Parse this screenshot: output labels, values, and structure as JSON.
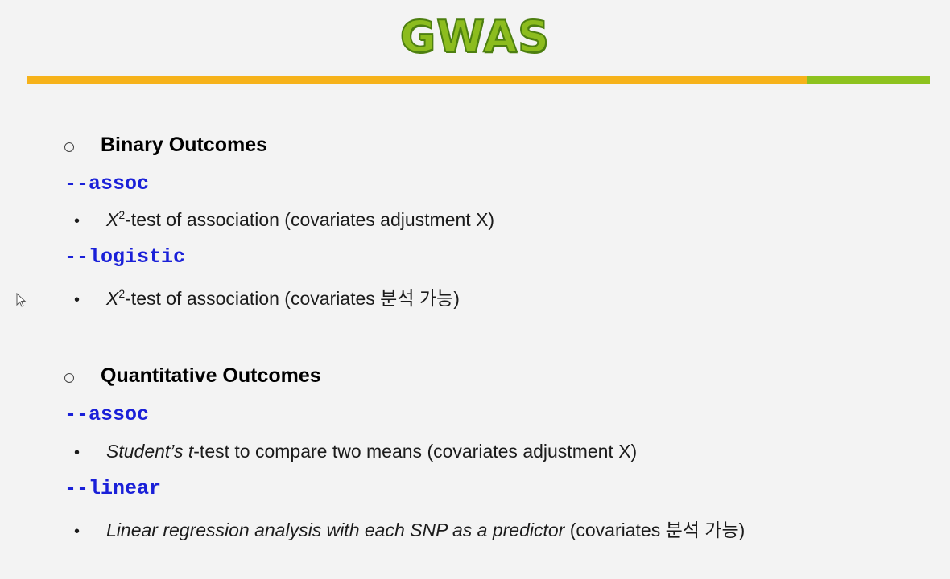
{
  "title": "GWAS",
  "sections": [
    {
      "heading": "Binary Outcomes",
      "commands": [
        {
          "flag": "--assoc",
          "desc": {
            "symbol": "X",
            "exponent": "2",
            "text": "-test of association (covariates adjustment X)"
          }
        },
        {
          "flag": "--logistic",
          "desc": {
            "symbol": "X",
            "exponent": "2",
            "text": "-test of association (covariates 분석 가능)"
          }
        }
      ]
    },
    {
      "heading": "Quantitative Outcomes",
      "commands": [
        {
          "flag": "--assoc",
          "desc": {
            "italic1": "Student’s ",
            "italic2": "t",
            "text": "-test to compare two means (covariates adjustment X)"
          }
        },
        {
          "flag": "--linear",
          "desc": {
            "italic": "Linear regression analysis with each SNP as a predictor",
            "text": " (covariates 분석 가능)"
          }
        }
      ]
    }
  ],
  "icons": {
    "bullet": "•",
    "cursor": "mouse-pointer-icon",
    "section_marker": "hollow-circle-icon"
  },
  "colors": {
    "title_fill": "#8cbc1e",
    "title_outline": "#4d7f10",
    "rule_orange": "#f6b21a",
    "rule_green": "#8dc21e",
    "command": "#1a20d8"
  }
}
